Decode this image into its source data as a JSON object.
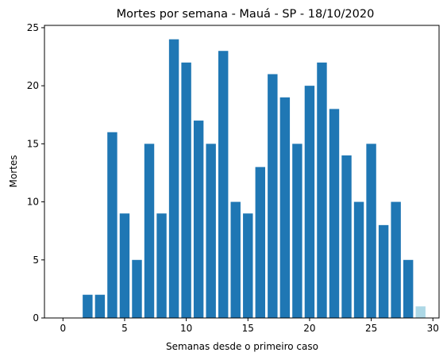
{
  "chart_data": {
    "type": "bar",
    "title": "Mortes por semana - Mauá - SP - 18/10/2020",
    "xlabel": "Semanas desde o primeiro caso",
    "ylabel": "Mortes",
    "xlim": [
      -1.5,
      30.5
    ],
    "ylim": [
      0,
      25.2
    ],
    "xticks": [
      0,
      5,
      10,
      15,
      20,
      25,
      30
    ],
    "yticks": [
      0,
      5,
      10,
      15,
      20,
      25
    ],
    "grid": false,
    "x": [
      0,
      1,
      2,
      3,
      4,
      5,
      6,
      7,
      8,
      9,
      10,
      11,
      12,
      13,
      14,
      15,
      16,
      17,
      18,
      19,
      20,
      21,
      22,
      23,
      24,
      25,
      26,
      27,
      28,
      29
    ],
    "values": [
      0,
      0,
      2,
      2,
      16,
      9,
      5,
      15,
      9,
      24,
      22,
      17,
      15,
      23,
      10,
      9,
      13,
      21,
      19,
      15,
      20,
      22,
      18,
      14,
      10,
      15,
      8,
      10,
      5,
      1
    ],
    "colors": {
      "bar": "#1f77b4",
      "last_bar": "#add8e6"
    }
  }
}
